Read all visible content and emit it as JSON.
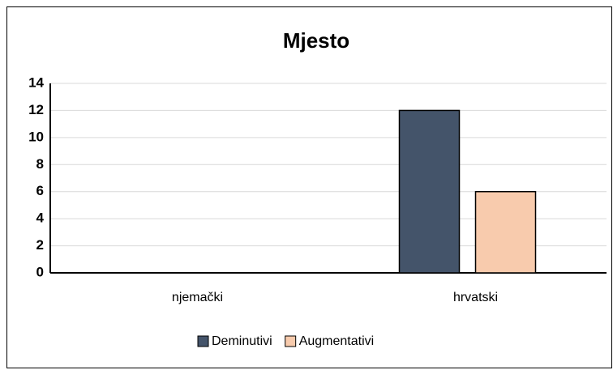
{
  "chart_data": {
    "type": "bar",
    "title": "Mjesto",
    "categories": [
      "njemački",
      "hrvatski"
    ],
    "series": [
      {
        "name": "Deminutivi",
        "color": "#44546a",
        "values": [
          0,
          12
        ]
      },
      {
        "name": "Augmentativi",
        "color": "#f8cbad",
        "values": [
          0,
          6
        ]
      }
    ],
    "ylim": [
      0,
      14
    ],
    "yticks": [
      0,
      2,
      4,
      6,
      8,
      10,
      12,
      14
    ],
    "grid": true,
    "legend": "bottom"
  }
}
